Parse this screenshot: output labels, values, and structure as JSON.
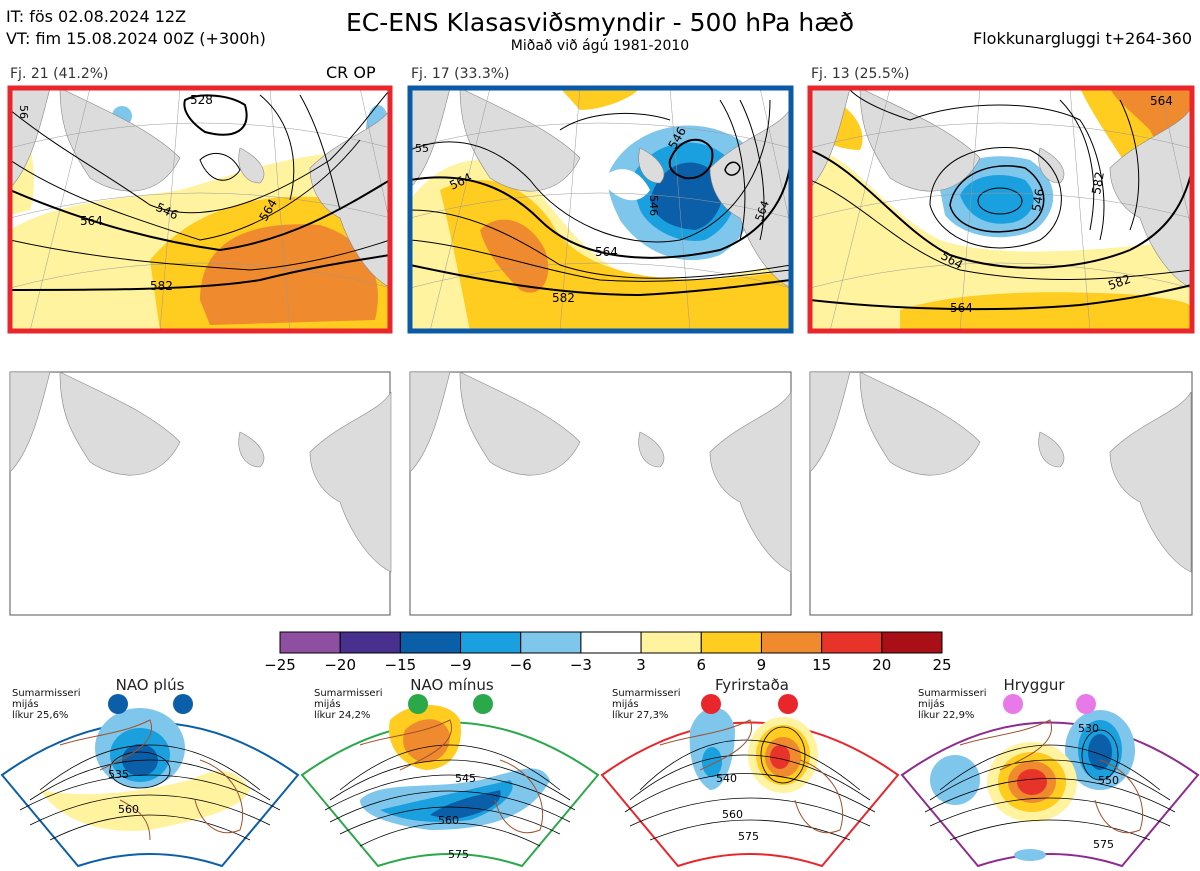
{
  "header": {
    "it": "IT: fös 02.08.2024 12Z",
    "vt": "VT: fim 15.08.2024 00Z  (+300h)",
    "title": "EC-ENS Klasasviðsmyndir - 500 hPa hæð",
    "subtitle": "Miðað við ágú 1981-2010",
    "window": "Flokkunargluggi t+264-360"
  },
  "panels": [
    {
      "label": "Fj. 21 (41.2%)",
      "tag": "CR OP",
      "frame": "#e8262b",
      "contours": [
        "528",
        "546",
        "564",
        "582",
        "56",
        "564"
      ]
    },
    {
      "label": "Fj. 17 (33.3%)",
      "tag": "",
      "frame": "#0a5aa8",
      "contours": [
        "546",
        "564",
        "582",
        "564",
        "564",
        "55",
        "546"
      ]
    },
    {
      "label": "Fj. 13 (25.5%)",
      "tag": "",
      "frame": "#e8262b",
      "contours": [
        "546",
        "564",
        "582",
        "582",
        "564",
        "564"
      ]
    }
  ],
  "colorbar": {
    "colors": [
      "#8e4fa0",
      "#48308f",
      "#0b5ea8",
      "#1aa0de",
      "#7ec6ec",
      "#ffffff",
      "#fff3a0",
      "#ffcc1f",
      "#f08a2e",
      "#e8332b",
      "#a80f16"
    ],
    "labels": [
      "-25",
      "-20",
      "-15",
      "-9",
      "-6",
      "-3",
      "3",
      "6",
      "9",
      "15",
      "20",
      "25"
    ]
  },
  "regimes": [
    {
      "name": "NAO plús",
      "info": "Sumarmisseri mijás líkur 25,6%",
      "info_lines": [
        "Sumarmisseri",
        "mijás",
        "líkur 25,6%"
      ],
      "color": "#0b5ea8",
      "contours": [
        "535",
        "560"
      ]
    },
    {
      "name": "NAO mínus",
      "info": "Sumarmisseri mijás líkur 24,2%",
      "info_lines": [
        "Sumarmisseri",
        "mijás",
        "líkur 24,2%"
      ],
      "color": "#2aa84a",
      "contours": [
        "545",
        "560",
        "575"
      ]
    },
    {
      "name": "Fyrirstaða",
      "info": "Sumarmisseri mijás líkur 27,3%",
      "info_lines": [
        "Sumarmisseri",
        "mijás",
        "líkur 27,3%"
      ],
      "color": "#e8262b",
      "contours": [
        "540",
        "560",
        "575"
      ]
    },
    {
      "name": "Hryggur",
      "info": "Sumarmisseri mijás líkur 22,9%",
      "info_lines": [
        "Sumarmisseri",
        "mijás",
        "líkur 22,9%"
      ],
      "color": "#e879e8",
      "contours": [
        "530",
        "550",
        "575"
      ]
    }
  ]
}
